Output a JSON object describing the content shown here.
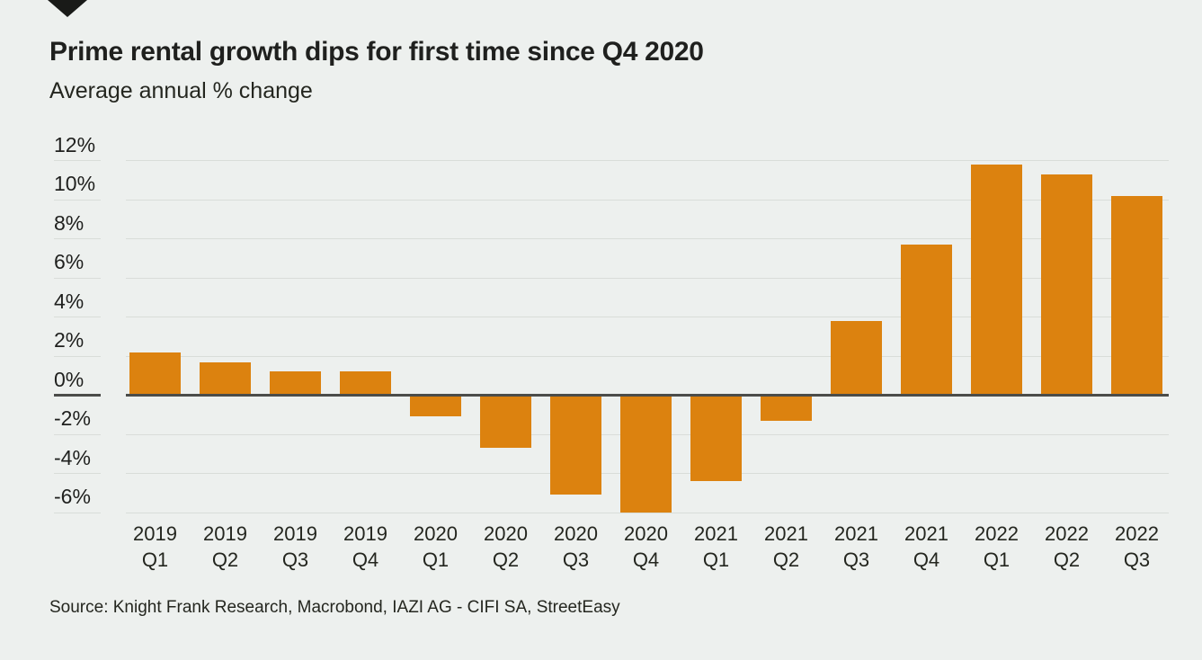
{
  "logo": {
    "icon": "triangle-down-icon",
    "color": "#191a18"
  },
  "header": {
    "title": "Prime rental growth dips for first time since Q4 2020",
    "subtitle": "Average annual % change"
  },
  "source": {
    "text": "Source: Knight Frank Research, Macrobond, IAZI AG - CIFI SA, StreetEasy"
  },
  "chart_data": {
    "type": "bar",
    "title": "Prime rental growth dips for first time since Q4 2020",
    "subtitle": "Average annual % change",
    "categories": [
      "2019 Q1",
      "2019 Q2",
      "2019 Q3",
      "2019 Q4",
      "2020 Q1",
      "2020 Q2",
      "2020 Q3",
      "2020 Q4",
      "2021 Q1",
      "2021 Q2",
      "2021 Q3",
      "2021 Q4",
      "2022 Q1",
      "2022 Q2",
      "2022 Q3"
    ],
    "values": [
      2.2,
      1.7,
      1.2,
      1.2,
      -1.1,
      -2.7,
      -5.1,
      -6.0,
      -4.4,
      -1.3,
      3.8,
      7.7,
      11.8,
      11.3,
      10.2
    ],
    "unit": "%",
    "y_ticks": [
      12,
      10,
      8,
      6,
      4,
      2,
      0,
      -2,
      -4,
      -6
    ],
    "ylim": [
      -6.4,
      13.3
    ],
    "grid": true,
    "legend": "none",
    "bar_color": "#dc820f",
    "grid_color": "#d9ddd9",
    "zero_line_color": "#4b4c49",
    "background": "#edf0ee"
  }
}
